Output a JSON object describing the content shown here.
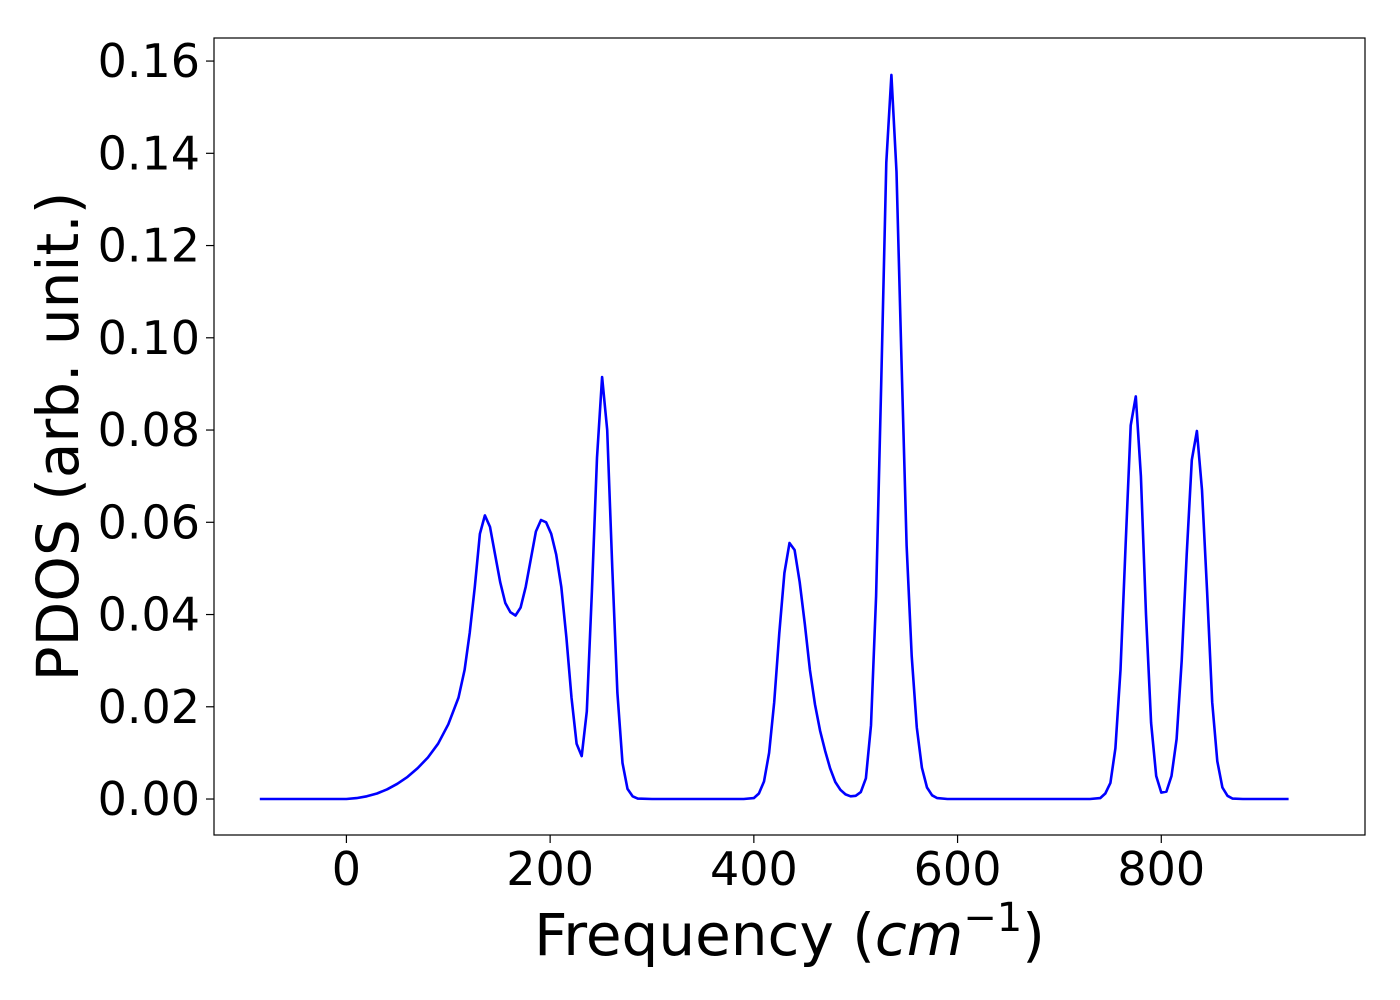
{
  "chart_data": {
    "type": "line",
    "xlabel_parts": {
      "pre": "Frequency (",
      "italic": "cm",
      "sup": "−1",
      "post": ")"
    },
    "ylabel": "PDOS (arb. unit.)",
    "xlim": [
      -130,
      1000
    ],
    "ylim": [
      -0.0078,
      0.165
    ],
    "x_ticks": [
      0,
      200,
      400,
      600,
      800
    ],
    "x_tick_labels": [
      "0",
      "200",
      "400",
      "600",
      "800"
    ],
    "y_ticks": [
      0.0,
      0.02,
      0.04,
      0.06,
      0.08,
      0.1,
      0.12,
      0.14,
      0.16
    ],
    "y_tick_labels": [
      "0.00",
      "0.02",
      "0.04",
      "0.06",
      "0.08",
      "0.10",
      "0.12",
      "0.14",
      "0.16"
    ],
    "grid": false,
    "series": [
      {
        "color": "#0000ff",
        "points": [
          [
            -85,
            0.0
          ],
          [
            0,
            0.0
          ],
          [
            10,
            0.0002
          ],
          [
            20,
            0.0006
          ],
          [
            30,
            0.0012
          ],
          [
            40,
            0.0021
          ],
          [
            50,
            0.0033
          ],
          [
            60,
            0.0048
          ],
          [
            70,
            0.0067
          ],
          [
            80,
            0.009
          ],
          [
            90,
            0.012
          ],
          [
            100,
            0.0162
          ],
          [
            110,
            0.022
          ],
          [
            116,
            0.028
          ],
          [
            121,
            0.036
          ],
          [
            126,
            0.046
          ],
          [
            131,
            0.0575
          ],
          [
            136,
            0.0615
          ],
          [
            141,
            0.059
          ],
          [
            146,
            0.053
          ],
          [
            151,
            0.047
          ],
          [
            156,
            0.0425
          ],
          [
            161,
            0.0405
          ],
          [
            166,
            0.0398
          ],
          [
            171,
            0.0415
          ],
          [
            176,
            0.046
          ],
          [
            181,
            0.052
          ],
          [
            186,
            0.058
          ],
          [
            191,
            0.0605
          ],
          [
            196,
            0.06
          ],
          [
            201,
            0.0575
          ],
          [
            206,
            0.053
          ],
          [
            211,
            0.046
          ],
          [
            216,
            0.035
          ],
          [
            221,
            0.022
          ],
          [
            226,
            0.012
          ],
          [
            231,
            0.0093
          ],
          [
            236,
            0.019
          ],
          [
            241,
            0.045
          ],
          [
            246,
            0.074
          ],
          [
            251,
            0.0915
          ],
          [
            256,
            0.08
          ],
          [
            261,
            0.05
          ],
          [
            266,
            0.023
          ],
          [
            271,
            0.0078
          ],
          [
            276,
            0.0022
          ],
          [
            281,
            0.0006
          ],
          [
            286,
            0.0001
          ],
          [
            300,
            0.0
          ],
          [
            390,
            0.0
          ],
          [
            400,
            0.0002
          ],
          [
            405,
            0.0012
          ],
          [
            410,
            0.0038
          ],
          [
            415,
            0.01
          ],
          [
            420,
            0.021
          ],
          [
            425,
            0.036
          ],
          [
            430,
            0.049
          ],
          [
            435,
            0.0555
          ],
          [
            440,
            0.054
          ],
          [
            445,
            0.047
          ],
          [
            450,
            0.038
          ],
          [
            455,
            0.028
          ],
          [
            460,
            0.0205
          ],
          [
            465,
            0.0148
          ],
          [
            470,
            0.0104
          ],
          [
            475,
            0.0066
          ],
          [
            480,
            0.0037
          ],
          [
            485,
            0.002
          ],
          [
            490,
            0.001
          ],
          [
            495,
            0.0006
          ],
          [
            500,
            0.0007
          ],
          [
            505,
            0.0015
          ],
          [
            510,
            0.0045
          ],
          [
            515,
            0.016
          ],
          [
            520,
            0.044
          ],
          [
            525,
            0.09
          ],
          [
            530,
            0.138
          ],
          [
            535,
            0.157
          ],
          [
            540,
            0.136
          ],
          [
            545,
            0.095
          ],
          [
            550,
            0.055
          ],
          [
            555,
            0.031
          ],
          [
            560,
            0.0155
          ],
          [
            565,
            0.0068
          ],
          [
            570,
            0.0025
          ],
          [
            575,
            0.0008
          ],
          [
            580,
            0.0002
          ],
          [
            590,
            0.0
          ],
          [
            730,
            0.0
          ],
          [
            740,
            0.0002
          ],
          [
            745,
            0.0012
          ],
          [
            750,
            0.0035
          ],
          [
            755,
            0.011
          ],
          [
            760,
            0.028
          ],
          [
            765,
            0.055
          ],
          [
            770,
            0.081
          ],
          [
            775,
            0.0873
          ],
          [
            780,
            0.07
          ],
          [
            785,
            0.04
          ],
          [
            790,
            0.0165
          ],
          [
            795,
            0.005
          ],
          [
            800,
            0.0014
          ],
          [
            805,
            0.0016
          ],
          [
            810,
            0.005
          ],
          [
            815,
            0.013
          ],
          [
            820,
            0.03
          ],
          [
            825,
            0.053
          ],
          [
            830,
            0.0735
          ],
          [
            835,
            0.0798
          ],
          [
            840,
            0.067
          ],
          [
            845,
            0.045
          ],
          [
            850,
            0.021
          ],
          [
            855,
            0.0082
          ],
          [
            860,
            0.0025
          ],
          [
            865,
            0.0007
          ],
          [
            870,
            0.0001
          ],
          [
            880,
            0.0
          ],
          [
            925,
            0.0
          ]
        ]
      }
    ]
  }
}
